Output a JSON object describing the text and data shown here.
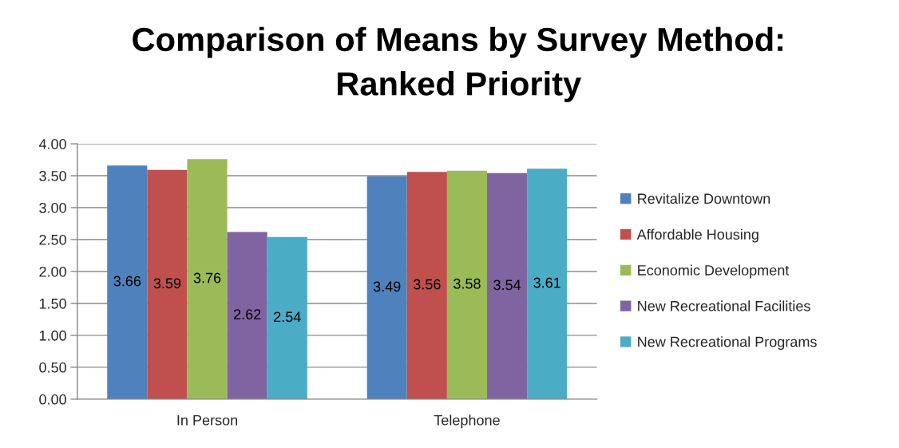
{
  "chart_data": {
    "type": "bar",
    "title": "Comparison of Means by Survey Method:\nRanked Priority",
    "categories": [
      "In Person",
      "Telephone"
    ],
    "series": [
      {
        "name": "Revitalize Downtown",
        "color": "#4f81bd",
        "values": [
          3.66,
          3.49
        ],
        "value_labels": [
          "3.66",
          "3.49"
        ]
      },
      {
        "name": "Affordable Housing",
        "color": "#c0504d",
        "values": [
          3.59,
          3.56
        ],
        "value_labels": [
          "3.59",
          "3.56"
        ]
      },
      {
        "name": "Economic Development",
        "color": "#9bbb59",
        "values": [
          3.76,
          3.58
        ],
        "value_labels": [
          "3.76",
          "3.58"
        ]
      },
      {
        "name": "New Recreational Facilities",
        "color": "#8064a2",
        "values": [
          2.62,
          3.54
        ],
        "value_labels": [
          "2.62",
          "3.54"
        ]
      },
      {
        "name": "New Recreational Programs",
        "color": "#4bacc6",
        "values": [
          2.54,
          3.61
        ],
        "value_labels": [
          "2.54",
          "3.61"
        ]
      }
    ],
    "ylim": [
      0,
      4
    ],
    "yticks": [
      {
        "value": 0,
        "label": "0.00"
      },
      {
        "value": 0.5,
        "label": "0.50"
      },
      {
        "value": 1,
        "label": "1.00"
      },
      {
        "value": 1.5,
        "label": "1.50"
      },
      {
        "value": 2,
        "label": "2.00"
      },
      {
        "value": 2.5,
        "label": "2.50"
      },
      {
        "value": 3,
        "label": "3.00"
      },
      {
        "value": 3.5,
        "label": "3.50"
      },
      {
        "value": 4,
        "label": "4.00"
      }
    ],
    "grid": "y",
    "legend": "right"
  }
}
